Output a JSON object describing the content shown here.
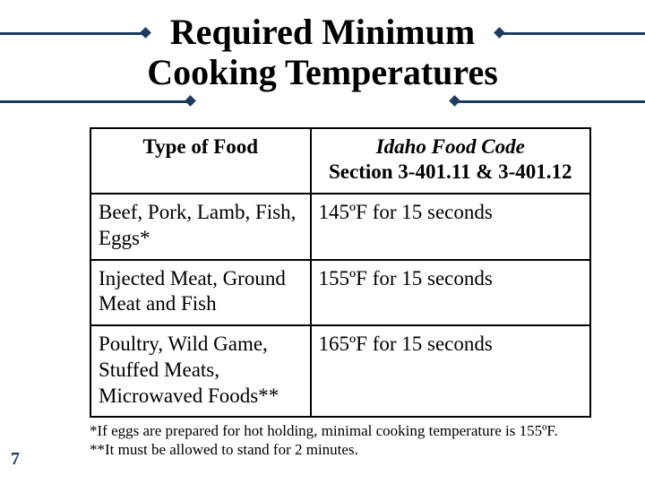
{
  "title_line1": "Required Minimum",
  "title_line2": "Cooking Temperatures",
  "page_number": "7",
  "table": {
    "header_col1": "Type of Food",
    "header_col2_line1": "Idaho Food Code",
    "header_col2_line2": "Section 3-401.11 & 3-401.12",
    "rows": [
      {
        "food": "Beef, Pork, Lamb, Fish, Eggs*",
        "temp": "145ºF for 15 seconds"
      },
      {
        "food": "Injected Meat, Ground Meat and Fish",
        "temp": "155ºF for 15 seconds"
      },
      {
        "food": "Poultry, Wild Game, Stuffed Meats, Microwaved Foods**",
        "temp": "165ºF for 15 seconds"
      }
    ]
  },
  "footnote1": "*If eggs are prepared for hot holding, minimal cooking temperature is 155ºF.",
  "footnote2": "**It must be allowed to stand for 2 minutes.",
  "colors": {
    "rule": "#1f3a5f",
    "text": "#000000",
    "background": "#ffffff"
  }
}
